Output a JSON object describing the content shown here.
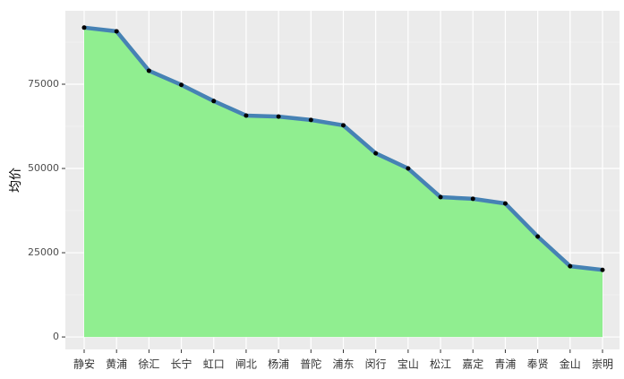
{
  "chart_data": {
    "type": "area",
    "y_label": "均价",
    "categories": [
      "静安",
      "黄浦",
      "徐汇",
      "长宁",
      "虹口",
      "闸北",
      "杨浦",
      "普陀",
      "浦东",
      "闵行",
      "宝山",
      "松江",
      "嘉定",
      "青浦",
      "奉贤",
      "金山",
      "崇明"
    ],
    "values": [
      91800,
      90700,
      79000,
      74800,
      70000,
      65700,
      65400,
      64400,
      62800,
      54500,
      50000,
      41500,
      41000,
      39600,
      29800,
      21000,
      19900
    ],
    "fill_color": "#90ee90",
    "line_color": "#4682b4",
    "point_color": "#000000",
    "ylim": [
      -3700,
      96800
    ],
    "yticks": [
      0,
      25000,
      50000,
      75000
    ],
    "grid": true
  }
}
